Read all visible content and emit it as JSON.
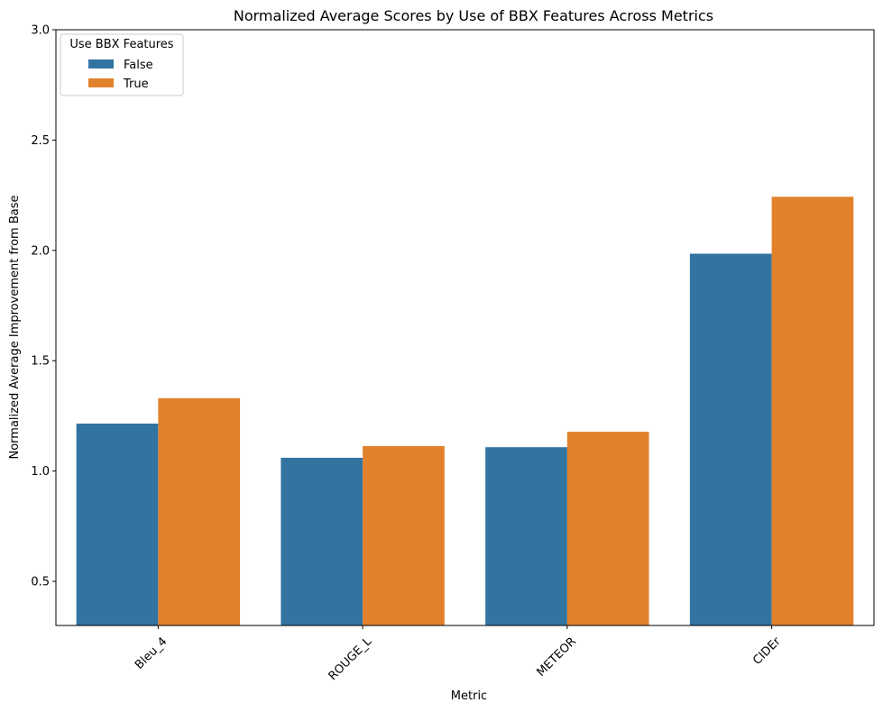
{
  "chart_data": {
    "type": "bar",
    "title": "Normalized Average Scores by Use of BBX Features Across Metrics",
    "xlabel": "Metric",
    "ylabel": "Normalized Average Improvement from Base",
    "categories": [
      "Bleu_4",
      "ROUGE_L",
      "METEOR",
      "CIDEr"
    ],
    "series": [
      {
        "name": "False",
        "color": "#3274a1",
        "values": [
          1.215,
          1.06,
          1.108,
          1.985
        ]
      },
      {
        "name": "True",
        "color": "#e1812c",
        "values": [
          1.33,
          1.113,
          1.178,
          2.243
        ]
      }
    ],
    "ylim": [
      0.3,
      3.0
    ],
    "yticks": [
      0.5,
      1.0,
      1.5,
      2.0,
      2.5,
      3.0
    ],
    "ytick_labels": [
      "0.5",
      "1.0",
      "1.5",
      "2.0",
      "2.5",
      "3.0"
    ],
    "grid": false,
    "legend": {
      "title": "Use BBX Features",
      "placement": "top-left"
    }
  }
}
